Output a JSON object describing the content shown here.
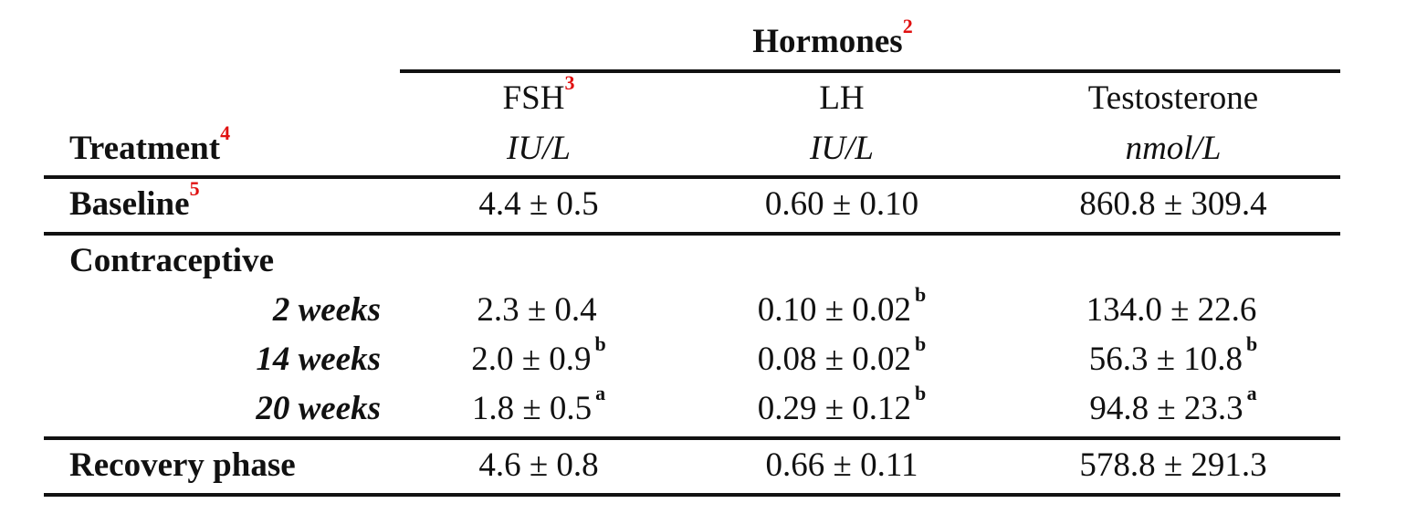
{
  "table": {
    "group_header": {
      "label": "Hormones",
      "note": "2"
    },
    "columns": [
      {
        "name": "FSH",
        "note": "3",
        "unit": "IU/L"
      },
      {
        "name": "LH",
        "note": "",
        "unit": "IU/L"
      },
      {
        "name": "Testosterone",
        "note": "",
        "unit": "nmol/L"
      }
    ],
    "treatment_header": {
      "label": "Treatment",
      "note": "4"
    },
    "baseline": {
      "label": "Baseline",
      "note": "5",
      "values": [
        {
          "value": "4.4 ± 0.5",
          "sig": ""
        },
        {
          "value": "0.60 ± 0.10",
          "sig": ""
        },
        {
          "value": "860.8 ± 309.4",
          "sig": ""
        }
      ]
    },
    "contraceptive": {
      "label": "Contraceptive",
      "rows": [
        {
          "label": "2 weeks",
          "values": [
            {
              "value": "2.3 ± 0.4",
              "sig": ""
            },
            {
              "value": "0.10 ± 0.02",
              "sig": "b"
            },
            {
              "value": "134.0 ± 22.6",
              "sig": ""
            }
          ]
        },
        {
          "label": "14 weeks",
          "values": [
            {
              "value": "2.0 ± 0.9",
              "sig": "b"
            },
            {
              "value": "0.08 ± 0.02",
              "sig": "b"
            },
            {
              "value": "56.3 ± 10.8",
              "sig": "b"
            }
          ]
        },
        {
          "label": "20 weeks",
          "values": [
            {
              "value": "1.8 ± 0.5",
              "sig": "a"
            },
            {
              "value": "0.29 ± 0.12",
              "sig": "b"
            },
            {
              "value": "94.8 ± 23.3",
              "sig": "a"
            }
          ]
        }
      ]
    },
    "recovery": {
      "label": "Recovery phase",
      "values": [
        {
          "value": "4.6 ± 0.8",
          "sig": ""
        },
        {
          "value": "0.66 ± 0.11",
          "sig": ""
        },
        {
          "value": "578.8 ± 291.3",
          "sig": ""
        }
      ]
    }
  }
}
